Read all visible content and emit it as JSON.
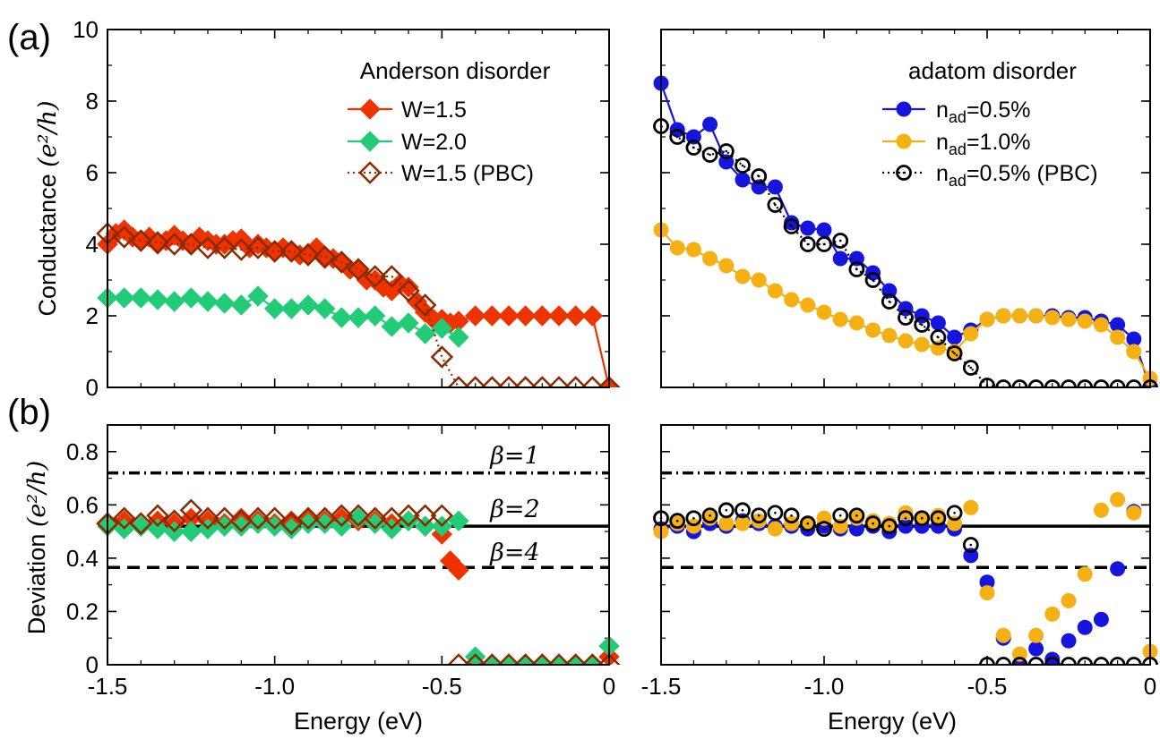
{
  "figure": {
    "label_a": "(a)",
    "label_b": "(b)",
    "xlabel": "Energy (eV)",
    "ylabel_top": "Conductance",
    "ylabel_bottom": "Deviation",
    "ylabel_unit": "(e²/h)"
  },
  "chart_data": [
    {
      "id": "a-left",
      "type": "line",
      "legend_title": "Anderson disorder",
      "legend_position": "top-right",
      "xlim": [
        -1.5,
        0
      ],
      "ylim": [
        0,
        10
      ],
      "xticks": [
        -1.5,
        -1.0,
        -0.5,
        0
      ],
      "xtick_labels": [
        "-1.5",
        "-1.0",
        "-0.5",
        "0"
      ],
      "yticks": [
        0,
        2,
        4,
        6,
        8,
        10
      ],
      "ytick_labels": [
        "0",
        "2",
        "4",
        "6",
        "8",
        "10"
      ],
      "series": [
        {
          "name": "W=1.5",
          "marker": "diamond-filled",
          "color": "#ee3300",
          "line": "solid",
          "x": [
            -1.5,
            -1.475,
            -1.45,
            -1.425,
            -1.4,
            -1.375,
            -1.35,
            -1.325,
            -1.3,
            -1.275,
            -1.25,
            -1.225,
            -1.2,
            -1.175,
            -1.15,
            -1.125,
            -1.1,
            -1.075,
            -1.05,
            -1.025,
            -1.0,
            -0.975,
            -0.95,
            -0.925,
            -0.9,
            -0.875,
            -0.85,
            -0.825,
            -0.8,
            -0.775,
            -0.75,
            -0.725,
            -0.7,
            -0.675,
            -0.65,
            -0.625,
            -0.6,
            -0.575,
            -0.55,
            -0.525,
            -0.5,
            -0.475,
            -0.45,
            -0.4,
            -0.35,
            -0.3,
            -0.25,
            -0.2,
            -0.15,
            -0.1,
            -0.05,
            0.0
          ],
          "y": [
            4.0,
            4.3,
            4.4,
            4.2,
            4.1,
            4.2,
            4.0,
            4.1,
            4.25,
            4.1,
            4.0,
            4.2,
            4.1,
            4.0,
            4.0,
            4.1,
            4.15,
            3.9,
            4.0,
            3.9,
            3.8,
            3.9,
            3.8,
            3.7,
            3.75,
            3.9,
            3.6,
            3.6,
            3.5,
            3.3,
            3.3,
            3.0,
            3.0,
            2.8,
            2.7,
            2.9,
            2.8,
            2.4,
            2.1,
            1.9,
            1.9,
            1.8,
            1.85,
            2.0,
            2.0,
            2.0,
            2.0,
            2.0,
            2.0,
            2.0,
            2.0,
            0.0
          ]
        },
        {
          "name": "W=2.0",
          "marker": "diamond-filled",
          "color": "#22cc77",
          "line": "solid",
          "x": [
            -1.5,
            -1.45,
            -1.4,
            -1.35,
            -1.3,
            -1.25,
            -1.2,
            -1.15,
            -1.1,
            -1.05,
            -1.0,
            -0.95,
            -0.9,
            -0.85,
            -0.8,
            -0.75,
            -0.7,
            -0.65,
            -0.6,
            -0.55,
            -0.5,
            -0.45
          ],
          "y": [
            2.5,
            2.5,
            2.5,
            2.45,
            2.4,
            2.5,
            2.4,
            2.35,
            2.3,
            2.55,
            2.2,
            2.2,
            2.3,
            2.2,
            1.95,
            1.95,
            2.0,
            1.7,
            1.8,
            1.5,
            1.65,
            1.4
          ]
        },
        {
          "name": "W=1.5 (PBC)",
          "marker": "diamond-open",
          "color": "#8b2a00",
          "line": "dotted",
          "x": [
            -1.5,
            -1.45,
            -1.4,
            -1.35,
            -1.3,
            -1.25,
            -1.2,
            -1.15,
            -1.1,
            -1.05,
            -1.0,
            -0.95,
            -0.9,
            -0.85,
            -0.8,
            -0.75,
            -0.7,
            -0.65,
            -0.6,
            -0.55,
            -0.5,
            -0.45,
            -0.4,
            -0.35,
            -0.3,
            -0.25,
            -0.2,
            -0.15,
            -0.1,
            -0.05,
            0.0
          ],
          "y": [
            4.3,
            4.2,
            4.1,
            4.05,
            4.0,
            4.0,
            3.9,
            3.9,
            3.85,
            3.9,
            3.8,
            3.8,
            3.7,
            3.65,
            3.5,
            3.3,
            3.1,
            3.1,
            2.7,
            2.3,
            0.85,
            0.0,
            0.0,
            0.0,
            0.0,
            0.0,
            0.0,
            0.0,
            0.0,
            0.0,
            0.0
          ]
        }
      ]
    },
    {
      "id": "a-right",
      "type": "line",
      "legend_title": "adatom disorder",
      "legend_position": "top-right",
      "xlim": [
        -1.5,
        0
      ],
      "ylim": [
        0,
        10
      ],
      "xticks": [
        -1.5,
        -1.0,
        -0.5,
        0
      ],
      "xtick_labels": [
        "-1.5",
        "-1.0",
        "-0.5",
        "0"
      ],
      "yticks": [
        0,
        2,
        4,
        6,
        8,
        10
      ],
      "series": [
        {
          "name": "n_ad=0.5%",
          "label_main": "n",
          "label_sub": "ad",
          "label_rest": "=0.5%",
          "marker": "circle-filled",
          "color": "#1515dd",
          "line": "solid",
          "x": [
            -1.5,
            -1.45,
            -1.4,
            -1.35,
            -1.3,
            -1.25,
            -1.2,
            -1.15,
            -1.1,
            -1.05,
            -1.0,
            -0.95,
            -0.9,
            -0.85,
            -0.8,
            -0.75,
            -0.7,
            -0.65,
            -0.6,
            -0.55,
            -0.5,
            -0.45,
            -0.4,
            -0.35,
            -0.3,
            -0.25,
            -0.2,
            -0.15,
            -0.1,
            -0.05,
            0.0
          ],
          "y": [
            8.5,
            7.2,
            7.0,
            7.35,
            6.3,
            5.8,
            5.6,
            5.6,
            4.6,
            4.45,
            4.4,
            3.6,
            3.6,
            3.2,
            2.7,
            2.2,
            2.0,
            1.8,
            1.4,
            1.6,
            1.9,
            2.0,
            2.0,
            2.0,
            2.0,
            1.95,
            1.95,
            1.85,
            1.75,
            1.35,
            0.0
          ]
        },
        {
          "name": "n_ad=1.0%",
          "label_main": "n",
          "label_sub": "ad",
          "label_rest": "=1.0%",
          "marker": "circle-filled",
          "color": "#f5b014",
          "line": "solid",
          "x": [
            -1.5,
            -1.45,
            -1.4,
            -1.35,
            -1.3,
            -1.25,
            -1.2,
            -1.15,
            -1.1,
            -1.05,
            -1.0,
            -0.95,
            -0.9,
            -0.85,
            -0.8,
            -0.75,
            -0.7,
            -0.65,
            -0.6,
            -0.55,
            -0.5,
            -0.45,
            -0.4,
            -0.35,
            -0.3,
            -0.25,
            -0.2,
            -0.15,
            -0.1,
            -0.05,
            0.0
          ],
          "y": [
            4.4,
            3.9,
            3.85,
            3.6,
            3.4,
            3.1,
            3.0,
            2.7,
            2.45,
            2.3,
            2.1,
            1.9,
            1.8,
            1.6,
            1.45,
            1.3,
            1.2,
            1.1,
            1.0,
            1.5,
            1.9,
            2.0,
            2.0,
            2.0,
            1.95,
            1.9,
            1.85,
            1.75,
            1.4,
            1.0,
            0.25
          ]
        },
        {
          "name": "n_ad=0.5% (PBC)",
          "label_main": "n",
          "label_sub": "ad",
          "label_rest": "=0.5% (PBC)",
          "marker": "circle-open",
          "color": "#000000",
          "line": "dotted",
          "x": [
            -1.5,
            -1.45,
            -1.4,
            -1.35,
            -1.3,
            -1.25,
            -1.2,
            -1.15,
            -1.1,
            -1.05,
            -1.0,
            -0.95,
            -0.9,
            -0.85,
            -0.8,
            -0.75,
            -0.7,
            -0.65,
            -0.6,
            -0.55,
            -0.5,
            -0.45,
            -0.4,
            -0.35,
            -0.3,
            -0.25,
            -0.2,
            -0.15,
            -0.1,
            -0.05,
            0.0
          ],
          "y": [
            7.3,
            7.0,
            6.7,
            6.5,
            6.6,
            6.2,
            5.9,
            5.1,
            4.5,
            4.0,
            4.0,
            4.1,
            3.3,
            3.0,
            2.4,
            1.95,
            1.75,
            1.4,
            0.95,
            0.55,
            0.05,
            0.0,
            0.0,
            0.0,
            0.0,
            0.0,
            0.0,
            0.0,
            0.0,
            0.0,
            0.0
          ]
        }
      ]
    },
    {
      "id": "b-left",
      "type": "scatter",
      "xlim": [
        -1.5,
        0
      ],
      "ylim": [
        0,
        0.9
      ],
      "xticks": [
        -1.5,
        -1.0,
        -0.5,
        0
      ],
      "xtick_labels": [
        "-1.5",
        "-1.0",
        "-0.5",
        "0"
      ],
      "yticks": [
        0,
        0.2,
        0.4,
        0.6,
        0.8
      ],
      "ytick_labels": [
        "0",
        "0.2",
        "0.4",
        "0.6",
        "0.8"
      ],
      "reference_lines": [
        {
          "label": "β=1",
          "y": 0.72,
          "style": "dashdot"
        },
        {
          "label": "β=2",
          "y": 0.52,
          "style": "solid"
        },
        {
          "label": "β=4",
          "y": 0.365,
          "style": "dashed"
        }
      ],
      "series": [
        {
          "name": "W=1.5",
          "marker": "diamond-filled",
          "color": "#ee3300",
          "x": [
            -1.5,
            -1.45,
            -1.4,
            -1.35,
            -1.3,
            -1.25,
            -1.2,
            -1.15,
            -1.1,
            -1.05,
            -1.0,
            -0.95,
            -0.9,
            -0.85,
            -0.8,
            -0.75,
            -0.7,
            -0.65,
            -0.6,
            -0.55,
            -0.5,
            -0.475,
            -0.45,
            -0.4,
            -0.35,
            -0.3,
            -0.25,
            -0.2,
            -0.15,
            -0.1,
            -0.05,
            0.0
          ],
          "y": [
            0.53,
            0.54,
            0.52,
            0.54,
            0.53,
            0.55,
            0.54,
            0.53,
            0.55,
            0.54,
            0.53,
            0.54,
            0.55,
            0.54,
            0.55,
            0.54,
            0.54,
            0.53,
            0.54,
            0.52,
            0.49,
            0.39,
            0.355,
            0.0,
            0.0,
            0.0,
            0.0,
            0.0,
            0.0,
            0.0,
            0.0,
            0.03
          ]
        },
        {
          "name": "W=2.0",
          "marker": "diamond-filled",
          "color": "#22cc77",
          "x": [
            -1.5,
            -1.45,
            -1.4,
            -1.35,
            -1.3,
            -1.25,
            -1.2,
            -1.15,
            -1.1,
            -1.05,
            -1.0,
            -0.95,
            -0.9,
            -0.85,
            -0.8,
            -0.75,
            -0.7,
            -0.65,
            -0.6,
            -0.55,
            -0.5,
            -0.45,
            -0.4,
            -0.35,
            -0.3,
            -0.25,
            -0.2,
            -0.15,
            -0.1,
            -0.05,
            0.0
          ],
          "y": [
            0.52,
            0.51,
            0.52,
            0.51,
            0.5,
            0.5,
            0.51,
            0.52,
            0.52,
            0.53,
            0.52,
            0.51,
            0.53,
            0.53,
            0.52,
            0.55,
            0.53,
            0.51,
            0.54,
            0.52,
            0.52,
            0.54,
            0.03,
            0.0,
            0.0,
            0.0,
            0.0,
            0.0,
            0.0,
            0.0,
            0.07
          ]
        },
        {
          "name": "W=1.5 (PBC)",
          "marker": "diamond-open",
          "color": "#8b2a00",
          "x": [
            -1.5,
            -1.45,
            -1.4,
            -1.35,
            -1.3,
            -1.25,
            -1.2,
            -1.15,
            -1.1,
            -1.05,
            -1.0,
            -0.95,
            -0.9,
            -0.85,
            -0.8,
            -0.75,
            -0.7,
            -0.65,
            -0.6,
            -0.55,
            -0.5,
            -0.45,
            -0.4,
            -0.35,
            -0.3,
            -0.25,
            -0.2,
            -0.15,
            -0.1,
            -0.05,
            0.0
          ],
          "y": [
            0.53,
            0.55,
            0.53,
            0.56,
            0.54,
            0.58,
            0.55,
            0.55,
            0.54,
            0.55,
            0.55,
            0.53,
            0.55,
            0.55,
            0.56,
            0.56,
            0.55,
            0.55,
            0.56,
            0.56,
            0.56,
            0.0,
            0.0,
            0.0,
            0.0,
            0.0,
            0.0,
            0.0,
            0.0,
            0.0,
            0.0
          ]
        }
      ]
    },
    {
      "id": "b-right",
      "type": "scatter",
      "xlim": [
        -1.5,
        0
      ],
      "ylim": [
        0,
        0.9
      ],
      "xticks": [
        -1.5,
        -1.0,
        -0.5,
        0
      ],
      "xtick_labels": [
        "-1.5",
        "-1.0",
        "-0.5",
        "0"
      ],
      "yticks": [
        0,
        0.2,
        0.4,
        0.6,
        0.8
      ],
      "reference_lines": [
        {
          "label": "",
          "y": 0.72,
          "style": "dashdot"
        },
        {
          "label": "",
          "y": 0.52,
          "style": "solid"
        },
        {
          "label": "",
          "y": 0.365,
          "style": "dashed"
        }
      ],
      "series": [
        {
          "name": "n_ad=0.5%",
          "marker": "circle-filled",
          "color": "#1515dd",
          "x": [
            -1.5,
            -1.45,
            -1.4,
            -1.35,
            -1.3,
            -1.25,
            -1.2,
            -1.15,
            -1.1,
            -1.05,
            -1.0,
            -0.95,
            -0.9,
            -0.85,
            -0.8,
            -0.75,
            -0.7,
            -0.65,
            -0.6,
            -0.55,
            -0.5,
            -0.45,
            -0.4,
            -0.35,
            -0.3,
            -0.25,
            -0.2,
            -0.15,
            -0.1,
            -0.05
          ],
          "y": [
            0.51,
            0.52,
            0.5,
            0.53,
            0.52,
            0.54,
            0.53,
            0.52,
            0.52,
            0.51,
            0.52,
            0.51,
            0.51,
            0.52,
            0.5,
            0.52,
            0.52,
            0.52,
            0.51,
            0.41,
            0.31,
            0.1,
            0.0,
            0.06,
            0.02,
            0.09,
            0.14,
            0.17,
            0.36,
            0.575
          ]
        },
        {
          "name": "n_ad=1.0%",
          "marker": "circle-filled",
          "color": "#f5b014",
          "x": [
            -1.5,
            -1.45,
            -1.4,
            -1.35,
            -1.3,
            -1.25,
            -1.2,
            -1.15,
            -1.1,
            -1.05,
            -1.0,
            -0.95,
            -0.9,
            -0.85,
            -0.8,
            -0.75,
            -0.7,
            -0.65,
            -0.6,
            -0.55,
            -0.5,
            -0.45,
            -0.4,
            -0.35,
            -0.3,
            -0.25,
            -0.2,
            -0.15,
            -0.1,
            -0.05,
            0.0
          ],
          "y": [
            0.5,
            0.53,
            0.52,
            0.55,
            0.53,
            0.53,
            0.54,
            0.51,
            0.53,
            0.53,
            0.55,
            0.52,
            0.55,
            0.54,
            0.53,
            0.57,
            0.55,
            0.56,
            0.53,
            0.59,
            0.27,
            0.11,
            0.04,
            0.11,
            0.19,
            0.24,
            0.34,
            0.58,
            0.62,
            0.57,
            0.05
          ]
        },
        {
          "name": "n_ad=0.5% (PBC)",
          "marker": "circle-open",
          "color": "#000000",
          "x": [
            -1.5,
            -1.45,
            -1.4,
            -1.35,
            -1.3,
            -1.25,
            -1.2,
            -1.15,
            -1.1,
            -1.05,
            -1.0,
            -0.95,
            -0.9,
            -0.85,
            -0.8,
            -0.75,
            -0.7,
            -0.65,
            -0.6,
            -0.55,
            -0.5,
            -0.45,
            -0.4,
            -0.35,
            -0.3,
            -0.25,
            -0.2,
            -0.15,
            -0.1,
            -0.05,
            0.0
          ],
          "y": [
            0.55,
            0.54,
            0.55,
            0.56,
            0.58,
            0.58,
            0.56,
            0.57,
            0.56,
            0.53,
            0.51,
            0.56,
            0.56,
            0.53,
            0.52,
            0.55,
            0.55,
            0.55,
            0.57,
            0.45,
            0.0,
            0.0,
            0.0,
            0.0,
            0.0,
            0.0,
            0.0,
            0.0,
            0.0,
            0.0,
            0.0
          ]
        }
      ]
    }
  ]
}
